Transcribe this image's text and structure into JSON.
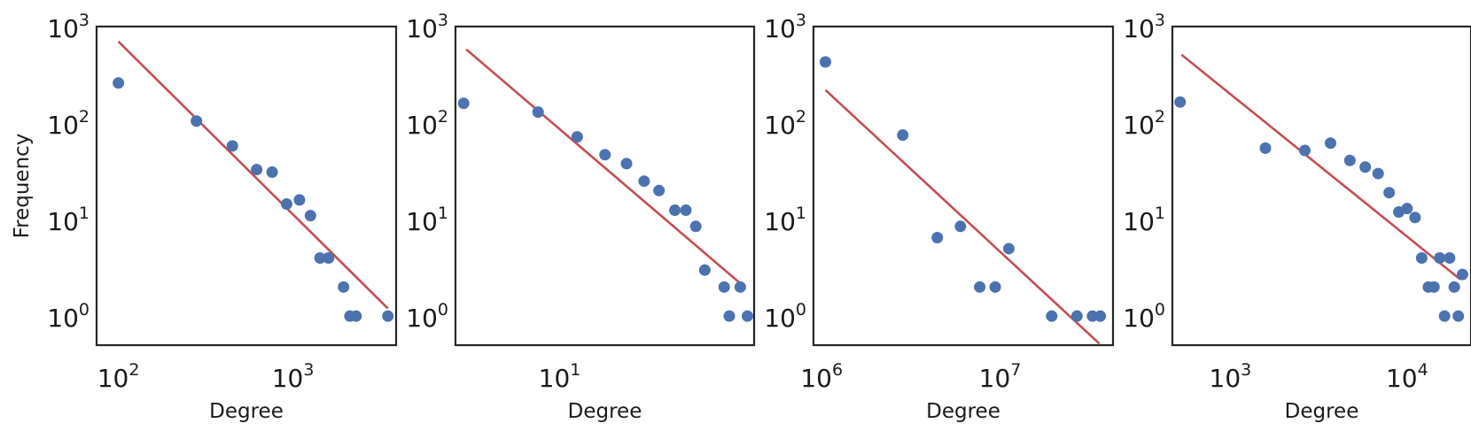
{
  "chart_data": [
    {
      "type": "scatter",
      "xscale": "log",
      "yscale": "log",
      "xlim": [
        75,
        3900
      ],
      "ylim": [
        0.5,
        1000
      ],
      "xticks": [
        {
          "value": 100,
          "base": "10",
          "exp": "2"
        },
        {
          "value": 1000,
          "base": "10",
          "exp": "3"
        }
      ],
      "yticks": [
        {
          "value": 1,
          "base": "10",
          "exp": "0"
        },
        {
          "value": 10,
          "base": "10",
          "exp": "1"
        },
        {
          "value": 100,
          "base": "10",
          "exp": "2"
        },
        {
          "value": 1000,
          "base": "10",
          "exp": "3"
        }
      ],
      "xlabel": "Degree",
      "ylabel": "Frequency",
      "points": [
        {
          "x": 100,
          "y": 260
        },
        {
          "x": 280,
          "y": 105
        },
        {
          "x": 450,
          "y": 58
        },
        {
          "x": 620,
          "y": 33
        },
        {
          "x": 760,
          "y": 31
        },
        {
          "x": 920,
          "y": 14.5
        },
        {
          "x": 1090,
          "y": 16
        },
        {
          "x": 1260,
          "y": 11
        },
        {
          "x": 1430,
          "y": 4
        },
        {
          "x": 1600,
          "y": 4
        },
        {
          "x": 1950,
          "y": 2
        },
        {
          "x": 2120,
          "y": 1
        },
        {
          "x": 2300,
          "y": 1
        },
        {
          "x": 3500,
          "y": 1
        }
      ],
      "fit": [
        {
          "x": 100,
          "y": 700
        },
        {
          "x": 3500,
          "y": 1.2
        }
      ]
    },
    {
      "type": "scatter",
      "xscale": "log",
      "yscale": "log",
      "xlim": [
        3.4,
        75
      ],
      "ylim": [
        0.5,
        1000
      ],
      "xticks": [
        {
          "value": 10,
          "base": "10",
          "exp": "1"
        }
      ],
      "yticks": [
        {
          "value": 1,
          "base": "10",
          "exp": "0"
        },
        {
          "value": 10,
          "base": "10",
          "exp": "1"
        },
        {
          "value": 100,
          "base": "10",
          "exp": "2"
        },
        {
          "value": 1000,
          "base": "10",
          "exp": "3"
        }
      ],
      "xlabel": "Degree",
      "ylabel": "",
      "points": [
        {
          "x": 3.7,
          "y": 160
        },
        {
          "x": 8,
          "y": 130
        },
        {
          "x": 12,
          "y": 72
        },
        {
          "x": 16,
          "y": 47
        },
        {
          "x": 20,
          "y": 38
        },
        {
          "x": 24,
          "y": 25
        },
        {
          "x": 28,
          "y": 20
        },
        {
          "x": 33,
          "y": 12.5
        },
        {
          "x": 37,
          "y": 12.5
        },
        {
          "x": 41,
          "y": 8.5
        },
        {
          "x": 45,
          "y": 3
        },
        {
          "x": 55,
          "y": 2
        },
        {
          "x": 58,
          "y": 1
        },
        {
          "x": 65,
          "y": 2
        },
        {
          "x": 70,
          "y": 1
        }
      ],
      "fit": [
        {
          "x": 3.8,
          "y": 580
        },
        {
          "x": 68,
          "y": 2
        }
      ]
    },
    {
      "type": "scatter",
      "xscale": "log",
      "yscale": "log",
      "xlim": [
        900000,
        43000000
      ],
      "ylim": [
        0.5,
        1000
      ],
      "xticks": [
        {
          "value": 1000000,
          "base": "10",
          "exp": "6"
        },
        {
          "value": 10000000,
          "base": "10",
          "exp": "7"
        }
      ],
      "yticks": [
        {
          "value": 1,
          "base": "10",
          "exp": "0"
        },
        {
          "value": 10,
          "base": "10",
          "exp": "1"
        },
        {
          "value": 100,
          "base": "10",
          "exp": "2"
        },
        {
          "value": 1000,
          "base": "10",
          "exp": "3"
        }
      ],
      "xlabel": "Degree",
      "ylabel": "",
      "points": [
        {
          "x": 1050000,
          "y": 430
        },
        {
          "x": 2850000,
          "y": 75
        },
        {
          "x": 4450000,
          "y": 6.5
        },
        {
          "x": 6000000,
          "y": 8.5
        },
        {
          "x": 7700000,
          "y": 2
        },
        {
          "x": 9400000,
          "y": 2
        },
        {
          "x": 11200000,
          "y": 5
        },
        {
          "x": 19500000,
          "y": 1
        },
        {
          "x": 27000000,
          "y": 1
        },
        {
          "x": 33000000,
          "y": 1
        },
        {
          "x": 36500000,
          "y": 1
        }
      ],
      "fit": [
        {
          "x": 1050000,
          "y": 220
        },
        {
          "x": 36000000,
          "y": 0.52
        }
      ]
    },
    {
      "type": "scatter",
      "xscale": "log",
      "yscale": "log",
      "xlim": [
        470,
        23000
      ],
      "ylim": [
        0.5,
        1000
      ],
      "xticks": [
        {
          "value": 1000,
          "base": "10",
          "exp": "3"
        },
        {
          "value": 10000,
          "base": "10",
          "exp": "4"
        }
      ],
      "yticks": [
        {
          "value": 1,
          "base": "10",
          "exp": "0"
        },
        {
          "value": 10,
          "base": "10",
          "exp": "1"
        },
        {
          "value": 100,
          "base": "10",
          "exp": "2"
        },
        {
          "value": 1000,
          "base": "10",
          "exp": "3"
        }
      ],
      "xlabel": "Degree",
      "ylabel": "",
      "points": [
        {
          "x": 520,
          "y": 165
        },
        {
          "x": 1580,
          "y": 55
        },
        {
          "x": 2640,
          "y": 52
        },
        {
          "x": 3690,
          "y": 62
        },
        {
          "x": 4750,
          "y": 41
        },
        {
          "x": 5800,
          "y": 35
        },
        {
          "x": 6860,
          "y": 30
        },
        {
          "x": 7920,
          "y": 19
        },
        {
          "x": 8980,
          "y": 12
        },
        {
          "x": 10000,
          "y": 13
        },
        {
          "x": 11100,
          "y": 10.5
        },
        {
          "x": 12100,
          "y": 4
        },
        {
          "x": 13200,
          "y": 2
        },
        {
          "x": 14200,
          "y": 2
        },
        {
          "x": 15300,
          "y": 4
        },
        {
          "x": 16300,
          "y": 1
        },
        {
          "x": 17400,
          "y": 4
        },
        {
          "x": 18500,
          "y": 2
        },
        {
          "x": 19500,
          "y": 1
        },
        {
          "x": 20600,
          "y": 2.7
        }
      ],
      "fit": [
        {
          "x": 530,
          "y": 510
        },
        {
          "x": 20000,
          "y": 2.4
        }
      ]
    }
  ]
}
